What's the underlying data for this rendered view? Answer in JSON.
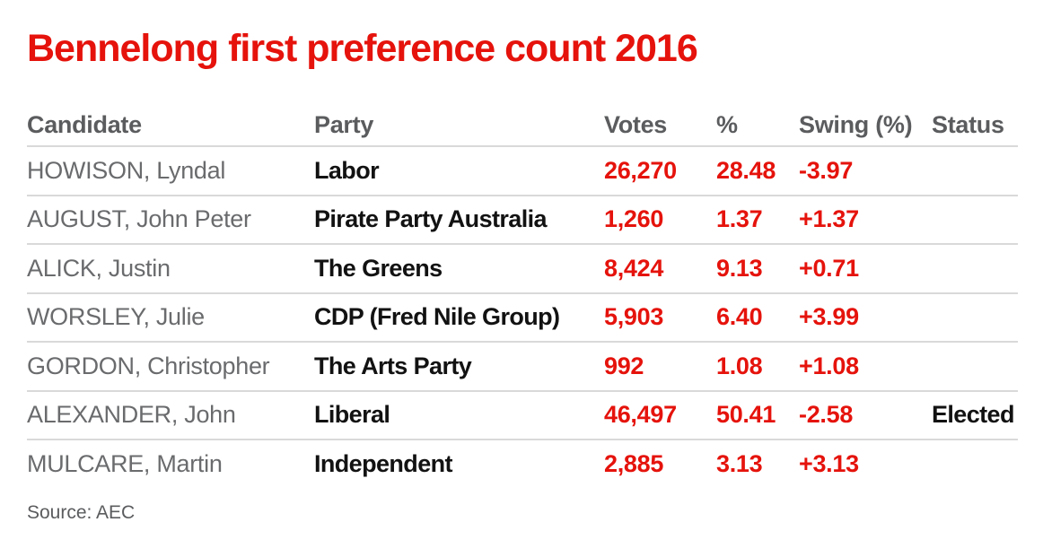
{
  "title": {
    "text": "Bennelong first preference count 2016"
  },
  "table": {
    "columns": [
      "Candidate",
      "Party",
      "Votes",
      "%",
      "Swing (%)",
      "Status"
    ],
    "rows": [
      {
        "candidate": "HOWISON, Lyndal",
        "party": "Labor",
        "votes": "26,270",
        "pct": "28.48",
        "swing": "-3.97",
        "status": ""
      },
      {
        "candidate": "AUGUST, John Peter",
        "party": "Pirate Party Australia",
        "votes": "1,260",
        "pct": "1.37",
        "swing": "+1.37",
        "status": ""
      },
      {
        "candidate": "ALICK, Justin",
        "party": "The Greens",
        "votes": "8,424",
        "pct": "9.13",
        "swing": "+0.71",
        "status": ""
      },
      {
        "candidate": "WORSLEY, Julie",
        "party": "CDP (Fred Nile Group)",
        "votes": "5,903",
        "pct": "6.40",
        "swing": "+3.99",
        "status": ""
      },
      {
        "candidate": "GORDON, Christopher",
        "party": "The Arts Party",
        "votes": "992",
        "pct": "1.08",
        "swing": "+1.08",
        "status": ""
      },
      {
        "candidate": "ALEXANDER, John",
        "party": "Liberal",
        "votes": "46,497",
        "pct": "50.41",
        "swing": "-2.58",
        "status": "Elected"
      },
      {
        "candidate": "MULCARE, Martin",
        "party": "Independent",
        "votes": "2,885",
        "pct": "3.13",
        "swing": "+3.13",
        "status": ""
      }
    ]
  },
  "source": {
    "text": "Source: AEC"
  },
  "colors": {
    "title_red": "#e5130c",
    "value_red": "#e5130c",
    "header_gray": "#5b5c5e",
    "candidate_gray": "#6a6b6d",
    "party_black": "#121212",
    "source_gray": "#5b5c5e",
    "divider": "#d9d9d9",
    "background": "#ffffff"
  },
  "chart_data": {
    "type": "table",
    "title": "Bennelong first preference count 2016",
    "columns": [
      "Candidate",
      "Party",
      "Votes",
      "%",
      "Swing (%)",
      "Status"
    ],
    "rows": [
      [
        "HOWISON, Lyndal",
        "Labor",
        26270,
        28.48,
        -3.97,
        ""
      ],
      [
        "AUGUST, John Peter",
        "Pirate Party Australia",
        1260,
        1.37,
        1.37,
        ""
      ],
      [
        "ALICK, Justin",
        "The Greens",
        8424,
        9.13,
        0.71,
        ""
      ],
      [
        "WORSLEY, Julie",
        "CDP (Fred Nile Group)",
        5903,
        6.4,
        3.99,
        ""
      ],
      [
        "GORDON, Christopher",
        "The Arts Party",
        992,
        1.08,
        1.08,
        ""
      ],
      [
        "ALEXANDER, John",
        "Liberal",
        46497,
        50.41,
        -2.58,
        "Elected"
      ],
      [
        "MULCARE, Martin",
        "Independent",
        2885,
        3.13,
        3.13,
        ""
      ]
    ],
    "source": "AEC",
    "layout": {
      "grid": "row-dividers-only",
      "numbers_color": "red",
      "header_position": "top"
    }
  }
}
